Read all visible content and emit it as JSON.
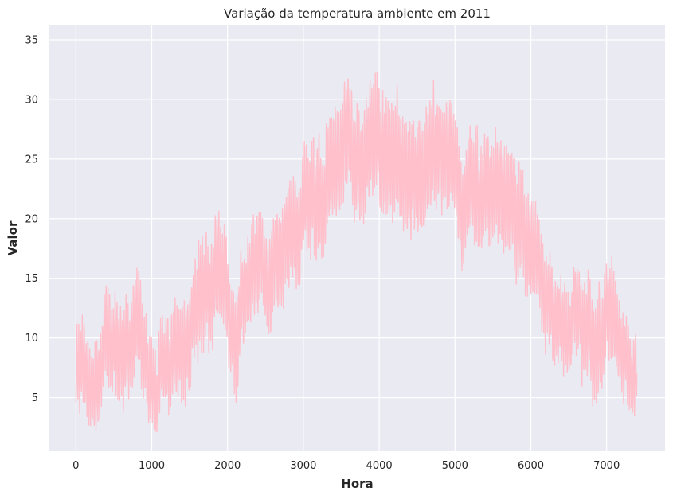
{
  "chart_data": {
    "type": "line",
    "title": "Variação da temperatura ambiente em 2011",
    "xlabel": "Hora",
    "ylabel": "Valor",
    "xlim": [
      -350,
      7770
    ],
    "ylim": [
      0.5,
      36.2
    ],
    "xticks": [
      0,
      1000,
      2000,
      3000,
      4000,
      5000,
      6000,
      7000
    ],
    "yticks": [
      5,
      10,
      15,
      20,
      25,
      30,
      35
    ],
    "grid": true,
    "legend": "none",
    "x_range": [
      0,
      7400
    ],
    "series": [
      {
        "color": "#ffc0cb",
        "profile": [
          {
            "x": 0,
            "base": 8,
            "amp": 3
          },
          {
            "x": 200,
            "base": 9.5,
            "amp": 3
          },
          {
            "x": 400,
            "base": 9.5,
            "amp": 3.5
          },
          {
            "x": 600,
            "base": 7,
            "amp": 3.5
          },
          {
            "x": 800,
            "base": 9.5,
            "amp": 4
          },
          {
            "x": 1000,
            "base": 8,
            "amp": 3
          },
          {
            "x": 1200,
            "base": 7,
            "amp": 3
          },
          {
            "x": 1400,
            "base": 9,
            "amp": 3.5
          },
          {
            "x": 1600,
            "base": 12,
            "amp": 4
          },
          {
            "x": 1800,
            "base": 14,
            "amp": 4
          },
          {
            "x": 2000,
            "base": 14,
            "amp": 4
          },
          {
            "x": 2200,
            "base": 14,
            "amp": 3.5
          },
          {
            "x": 2400,
            "base": 15,
            "amp": 3.5
          },
          {
            "x": 2600,
            "base": 16.5,
            "amp": 3.5
          },
          {
            "x": 2800,
            "base": 19,
            "amp": 4
          },
          {
            "x": 3000,
            "base": 22,
            "amp": 4
          },
          {
            "x": 3200,
            "base": 23,
            "amp": 4.5
          },
          {
            "x": 3500,
            "base": 23.5,
            "amp": 4
          },
          {
            "x": 3800,
            "base": 24.5,
            "amp": 4
          },
          {
            "x": 4100,
            "base": 26.5,
            "amp": 4.5
          },
          {
            "x": 4400,
            "base": 27,
            "amp": 4.5
          },
          {
            "x": 4700,
            "base": 25,
            "amp": 4
          },
          {
            "x": 5000,
            "base": 24.5,
            "amp": 4
          },
          {
            "x": 5300,
            "base": 24,
            "amp": 4
          },
          {
            "x": 5600,
            "base": 23.5,
            "amp": 4
          },
          {
            "x": 5900,
            "base": 21.5,
            "amp": 4
          },
          {
            "x": 6100,
            "base": 15.5,
            "amp": 3.5
          },
          {
            "x": 6300,
            "base": 14,
            "amp": 3
          },
          {
            "x": 6500,
            "base": 11,
            "amp": 3
          },
          {
            "x": 6700,
            "base": 10.5,
            "amp": 3.5
          },
          {
            "x": 6850,
            "base": 13,
            "amp": 4
          },
          {
            "x": 7000,
            "base": 11,
            "amp": 3.5
          },
          {
            "x": 7100,
            "base": 13,
            "amp": 3.5
          },
          {
            "x": 7200,
            "base": 9,
            "amp": 3
          },
          {
            "x": 7300,
            "base": 7,
            "amp": 3
          },
          {
            "x": 7400,
            "base": 9,
            "amp": 3
          }
        ]
      }
    ]
  }
}
